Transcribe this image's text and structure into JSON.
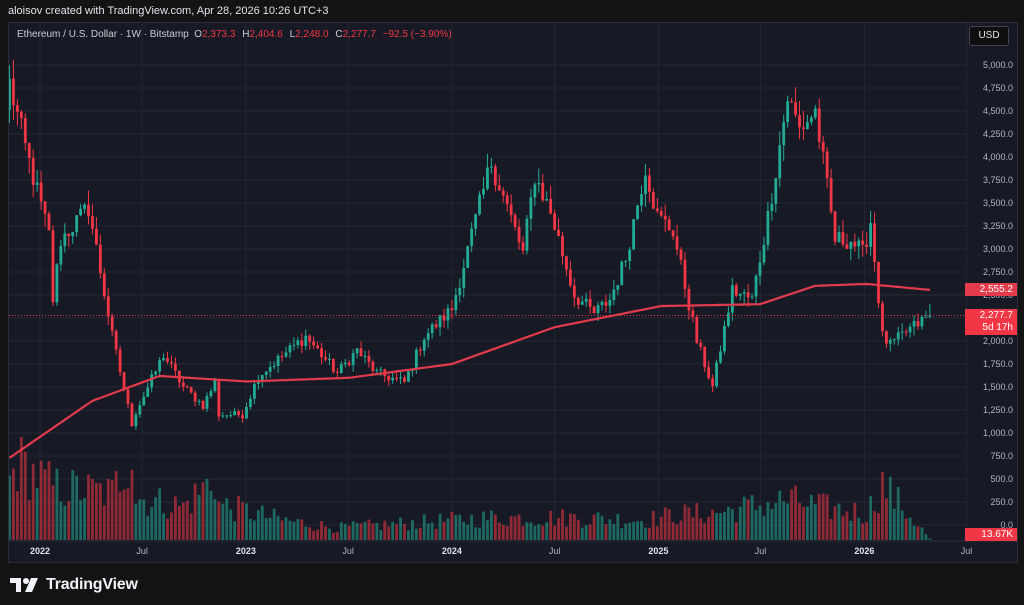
{
  "header": {
    "author_line": "aloisov created with TradingView.com, Apr 28, 2026 10:26 UTC+3"
  },
  "legend": {
    "symbol": "Ethereum / U.S. Dollar · 1W · Bitstamp",
    "o_label": "O",
    "o_value": "2,373.3",
    "h_label": "H",
    "h_value": "2,404.6",
    "l_label": "L",
    "l_value": "2,248.0",
    "c_label": "C",
    "c_value": "2,277.7",
    "change": "−92.5 (−3.90%)"
  },
  "toolbar": {
    "currency_label": "USD"
  },
  "price_tags": {
    "ma": "2,555.2",
    "last": "2,277.7",
    "countdown": "5d 17h",
    "volume": "13.67K"
  },
  "colors": {
    "up": "#22ab94",
    "down": "#f23645",
    "ma": "#e33a4c",
    "background": "#171a25",
    "grid": "#242733",
    "text": "#b2b5be"
  },
  "footer": {
    "brand": "TradingView",
    "logo_icon": "tradingview-logo-icon"
  },
  "chart_data": {
    "type": "candlestick",
    "title": "Ethereum / U.S. Dollar · 1W · Bitstamp",
    "y_ticks": [
      "5,000.0",
      "4,750.0",
      "4,500.0",
      "4,250.0",
      "4,000.0",
      "3,750.0",
      "3,500.0",
      "3,250.0",
      "3,000.0",
      "2,750.0",
      "2,500.0",
      "2,250.0",
      "2,000.0",
      "1,750.0",
      "1,500.0",
      "1,250.0",
      "1,000.0",
      "750.0",
      "500.0",
      "250.0",
      "0.0"
    ],
    "x_ticks": [
      "2022",
      "Jul",
      "2023",
      "Jul",
      "2024",
      "Jul",
      "2025",
      "Jul",
      "2026",
      "Jul"
    ],
    "ylim": [
      0,
      5000
    ],
    "price_anchors": [
      [
        "2021-11-08",
        4800
      ],
      [
        "2021-12-06",
        4100
      ],
      [
        "2022-01-17",
        3150
      ],
      [
        "2022-01-24",
        2450
      ],
      [
        "2022-02-07",
        3100
      ],
      [
        "2022-03-28",
        3450
      ],
      [
        "2022-04-11",
        3000
      ],
      [
        "2022-05-09",
        2050
      ],
      [
        "2022-06-13",
        1100
      ],
      [
        "2022-06-20",
        1230
      ],
      [
        "2022-08-08",
        1850
      ],
      [
        "2022-09-12",
        1500
      ],
      [
        "2022-10-17",
        1300
      ],
      [
        "2022-11-07",
        1550
      ],
      [
        "2022-11-14",
        1200
      ],
      [
        "2022-12-26",
        1200
      ],
      [
        "2023-01-23",
        1620
      ],
      [
        "2023-04-17",
        2050
      ],
      [
        "2023-06-12",
        1650
      ],
      [
        "2023-07-17",
        1900
      ],
      [
        "2023-08-21",
        1650
      ],
      [
        "2023-10-09",
        1550
      ],
      [
        "2023-11-13",
        2050
      ],
      [
        "2024-01-01",
        2350
      ],
      [
        "2024-03-11",
        3950
      ],
      [
        "2024-05-06",
        2950
      ],
      [
        "2024-05-27",
        3800
      ],
      [
        "2024-06-24",
        3400
      ],
      [
        "2024-08-05",
        2500
      ],
      [
        "2024-09-09",
        2300
      ],
      [
        "2024-10-07",
        2450
      ],
      [
        "2024-11-04",
        2900
      ],
      [
        "2024-12-09",
        3900
      ],
      [
        "2024-12-30",
        3350
      ],
      [
        "2025-01-27",
        3200
      ],
      [
        "2025-03-10",
        2000
      ],
      [
        "2025-04-07",
        1500
      ],
      [
        "2025-05-12",
        2550
      ],
      [
        "2025-06-16",
        2450
      ],
      [
        "2025-07-14",
        3350
      ],
      [
        "2025-08-18",
        4650
      ],
      [
        "2025-09-08",
        4300
      ],
      [
        "2025-10-06",
        4500
      ],
      [
        "2025-11-10",
        3100
      ],
      [
        "2025-12-08",
        3100
      ],
      [
        "2025-12-29",
        2950
      ],
      [
        "2026-01-12",
        3300
      ],
      [
        "2026-02-02",
        2050
      ],
      [
        "2026-02-16",
        1950
      ],
      [
        "2026-03-16",
        2100
      ],
      [
        "2026-04-27",
        2277.7
      ]
    ],
    "ma_anchors": [
      [
        "2021-11-08",
        730
      ],
      [
        "2022-04-04",
        1350
      ],
      [
        "2022-08-01",
        1620
      ],
      [
        "2023-01-02",
        1560
      ],
      [
        "2023-07-03",
        1600
      ],
      [
        "2024-01-01",
        1750
      ],
      [
        "2024-07-01",
        2150
      ],
      [
        "2025-01-06",
        2380
      ],
      [
        "2025-06-30",
        2400
      ],
      [
        "2025-10-06",
        2600
      ],
      [
        "2026-01-05",
        2620
      ],
      [
        "2026-04-27",
        2555.2
      ]
    ],
    "volume": {
      "ylim": [
        0,
        900
      ],
      "anchors": [
        [
          "2021-11-08",
          520
        ],
        [
          "2021-11-22",
          700
        ],
        [
          "2022-01-24",
          480
        ],
        [
          "2022-05-09",
          420
        ],
        [
          "2022-06-13",
          820
        ],
        [
          "2022-06-20",
          380
        ],
        [
          "2022-09-12",
          300
        ],
        [
          "2022-11-07",
          560
        ],
        [
          "2022-11-14",
          320
        ],
        [
          "2023-03-06",
          180
        ],
        [
          "2023-06-12",
          110
        ],
        [
          "2024-03-11",
          200
        ],
        [
          "2024-08-05",
          200
        ],
        [
          "2024-12-09",
          180
        ],
        [
          "2025-02-03",
          230
        ],
        [
          "2025-04-07",
          240
        ],
        [
          "2025-08-18",
          360
        ],
        [
          "2025-10-13",
          300
        ],
        [
          "2026-01-05",
          240
        ],
        [
          "2026-02-02",
          500
        ],
        [
          "2026-04-27",
          13.67
        ]
      ]
    }
  }
}
